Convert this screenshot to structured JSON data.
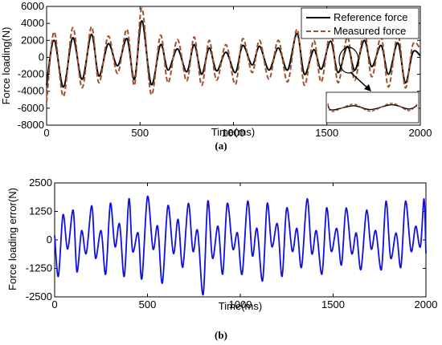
{
  "chart_data": [
    {
      "panel": "(a)",
      "type": "line",
      "xlabel": "Time(ms)",
      "ylabel": "Force loading(N)",
      "xlim": [
        0,
        2000
      ],
      "ylim": [
        -8000,
        6000
      ],
      "xticks": [
        0,
        500,
        1000,
        1500,
        2000
      ],
      "yticks": [
        6000,
        4000,
        2000,
        0,
        -2000,
        -4000,
        -6000,
        -8000
      ],
      "legend_position": "top-right",
      "inset": "zoomed view of the interval around 1650 ms, shown at lower right",
      "series": [
        {
          "name": "Reference force",
          "color": "#000000",
          "style": "solid",
          "x": [
            0,
            40,
            90,
            140,
            190,
            240,
            280,
            330,
            380,
            430,
            470,
            510,
            560,
            610,
            650,
            700,
            750,
            790,
            830,
            870,
            910,
            960,
            1010,
            1050,
            1100,
            1140,
            1190,
            1240,
            1290,
            1340,
            1380,
            1430,
            1470,
            1520,
            1560,
            1610,
            1650,
            1700,
            1740,
            1790,
            1830,
            1880,
            1920,
            1960,
            2000
          ],
          "y": [
            -3300,
            2000,
            -3500,
            2300,
            -2600,
            2700,
            -2200,
            1600,
            -1000,
            2200,
            -2600,
            4300,
            -3200,
            1500,
            -1500,
            1000,
            -1700,
            1500,
            -2000,
            1100,
            -1600,
            600,
            -1800,
            1400,
            -900,
            1300,
            -1500,
            1100,
            -1500,
            2800,
            -2000,
            900,
            -1400,
            1900,
            -1800,
            1300,
            -1500,
            2000,
            -1100,
            1400,
            -2000,
            1700,
            -3000,
            600,
            200
          ]
        },
        {
          "name": "Measured force",
          "color": "#a0522d",
          "style": "dashed",
          "x": [
            0,
            40,
            90,
            140,
            190,
            240,
            280,
            330,
            380,
            430,
            470,
            510,
            560,
            610,
            650,
            700,
            750,
            790,
            830,
            870,
            910,
            960,
            1010,
            1050,
            1100,
            1140,
            1190,
            1240,
            1290,
            1340,
            1380,
            1430,
            1470,
            1520,
            1560,
            1610,
            1650,
            1700,
            1740,
            1790,
            1830,
            1880,
            1920,
            1960,
            2000
          ],
          "y": [
            -5300,
            3000,
            -4600,
            3500,
            -3600,
            3600,
            -3000,
            2500,
            -1900,
            3300,
            -3300,
            5800,
            -4400,
            2600,
            -3000,
            2100,
            -2800,
            2400,
            -3300,
            2000,
            -2700,
            1500,
            -3200,
            2200,
            -1800,
            2000,
            -2600,
            2000,
            -2900,
            3300,
            -3300,
            2000,
            -2900,
            3100,
            -3000,
            2400,
            -2700,
            3100,
            -2300,
            2400,
            -3500,
            2700,
            -3600,
            1500,
            1000
          ]
        }
      ]
    },
    {
      "panel": "(b)",
      "type": "line",
      "xlabel": "Time(ms)",
      "ylabel": "Force loading error(N)",
      "xlim": [
        0,
        2000
      ],
      "ylim": [
        -2500,
        2500
      ],
      "xticks": [
        0,
        500,
        1000,
        1500,
        2000
      ],
      "yticks": [
        2500,
        1250,
        0,
        -1250,
        -2500
      ],
      "series": [
        {
          "color": "#1010e0",
          "style": "solid",
          "x": [
            0,
            20,
            45,
            70,
            100,
            120,
            145,
            170,
            200,
            220,
            250,
            275,
            300,
            325,
            350,
            375,
            400,
            420,
            450,
            470,
            500,
            530,
            555,
            580,
            610,
            640,
            665,
            690,
            720,
            745,
            770,
            800,
            825,
            850,
            880,
            905,
            930,
            960,
            985,
            1010,
            1040,
            1065,
            1090,
            1120,
            1145,
            1170,
            1200,
            1225,
            1250,
            1280,
            1305,
            1330,
            1360,
            1385,
            1410,
            1440,
            1465,
            1490,
            1520,
            1545,
            1570,
            1600,
            1625,
            1650,
            1680,
            1705,
            1730,
            1760,
            1785,
            1810,
            1840,
            1865,
            1890,
            1920,
            1945,
            1970,
            1990,
            2000
          ],
          "y": [
            200,
            -1600,
            1100,
            -400,
            1300,
            -1400,
            400,
            -600,
            1500,
            -800,
            400,
            -1500,
            1600,
            -300,
            700,
            -1600,
            1800,
            -500,
            300,
            -1700,
            1900,
            -400,
            600,
            -1900,
            1500,
            -600,
            900,
            -1200,
            1600,
            -500,
            400,
            -2400,
            1700,
            -800,
            600,
            -1500,
            1600,
            -400,
            300,
            -1500,
            1700,
            -700,
            500,
            -1800,
            1600,
            -300,
            700,
            -1600,
            1400,
            -500,
            500,
            -1200,
            1800,
            -600,
            400,
            -1500,
            1400,
            -500,
            500,
            -1100,
            1400,
            -600,
            300,
            -1300,
            1300,
            -400,
            400,
            -1300,
            1700,
            -800,
            300,
            -1200,
            1700,
            -500,
            600,
            -300,
            1800,
            -600
          ]
        }
      ]
    }
  ],
  "captions": {
    "a": "(a)",
    "b": "(b)"
  }
}
